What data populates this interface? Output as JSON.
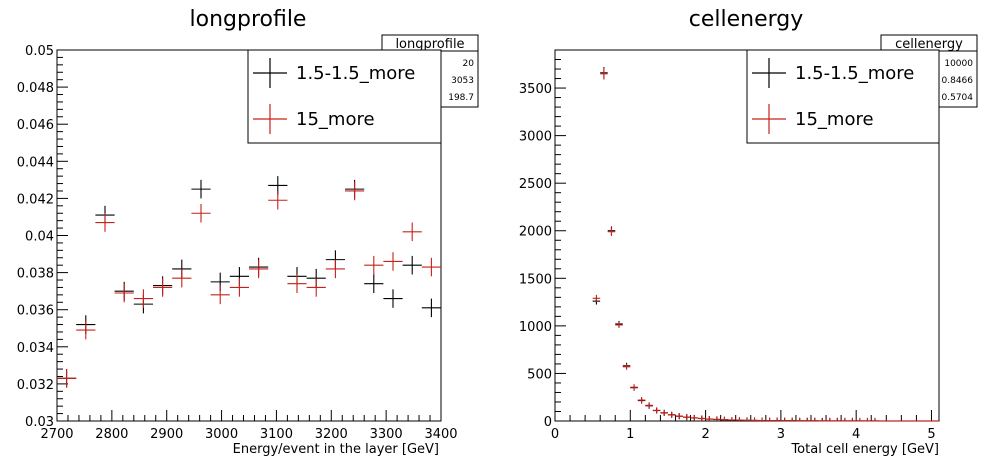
{
  "chart_data": [
    {
      "type": "scatter",
      "title": "longprofile",
      "xlabel": "Energy/event in the layer [GeV]",
      "ylabel": "",
      "xlim": [
        2700,
        3400
      ],
      "ylim": [
        0.03,
        0.05
      ],
      "x_ticks": [
        2700,
        2800,
        2900,
        3000,
        3100,
        3200,
        3300,
        3400
      ],
      "x_tick_labels": [
        "2700",
        "2800",
        "2900",
        "3000",
        "3100",
        "3200",
        "3300",
        "3400"
      ],
      "y_ticks": [
        0.03,
        0.032,
        0.034,
        0.036,
        0.038,
        0.04,
        0.042,
        0.044,
        0.046,
        0.048,
        0.05
      ],
      "y_tick_labels": [
        "0.03",
        "0.032",
        "0.034",
        "0.036",
        "0.038",
        "0.04",
        "0.042",
        "0.044",
        "0.046",
        "0.048",
        "0.05"
      ],
      "grid": false,
      "bin_width": 35,
      "stats_box": {
        "title": "longprofile",
        "values": [
          "20",
          "3053",
          "198.7"
        ]
      },
      "legend": {
        "position": "top-right",
        "entries": [
          "1.5-1.5_more",
          "15_more"
        ]
      },
      "series": [
        {
          "name": "1.5-1.5_more",
          "color": "#000000",
          "x": [
            2717.5,
            2752.5,
            2787.5,
            2822.5,
            2857.5,
            2892.5,
            2927.5,
            2962.5,
            2997.5,
            3032.5,
            3067.5,
            3102.5,
            3137.5,
            3172.5,
            3207.5,
            3242.5,
            3277.5,
            3312.5,
            3347.5,
            3382.5
          ],
          "y": [
            0.0323,
            0.0352,
            0.0411,
            0.037,
            0.0363,
            0.0373,
            0.0382,
            0.0425,
            0.0375,
            0.0378,
            0.0383,
            0.0427,
            0.0378,
            0.0377,
            0.0387,
            0.0425,
            0.0374,
            0.0366,
            0.0384,
            0.0361
          ],
          "yerr": [
            0.0005,
            0.0005,
            0.0005,
            0.0005,
            0.0005,
            0.0005,
            0.0005,
            0.0005,
            0.0005,
            0.0005,
            0.0005,
            0.0005,
            0.0005,
            0.0005,
            0.0005,
            0.0005,
            0.0005,
            0.0005,
            0.0005,
            0.0005
          ]
        },
        {
          "name": "15_more",
          "color": "#c8201a",
          "x": [
            2717.5,
            2752.5,
            2787.5,
            2822.5,
            2857.5,
            2892.5,
            2927.5,
            2962.5,
            2997.5,
            3032.5,
            3067.5,
            3102.5,
            3137.5,
            3172.5,
            3207.5,
            3242.5,
            3277.5,
            3312.5,
            3347.5,
            3382.5
          ],
          "y": [
            0.0323,
            0.0349,
            0.0407,
            0.0369,
            0.0366,
            0.0372,
            0.0377,
            0.0412,
            0.0368,
            0.0372,
            0.0382,
            0.0419,
            0.0374,
            0.0372,
            0.0382,
            0.0424,
            0.0384,
            0.0386,
            0.0402,
            0.0383
          ],
          "yerr": [
            0.0005,
            0.0005,
            0.0005,
            0.0005,
            0.0005,
            0.0005,
            0.0005,
            0.0005,
            0.0005,
            0.0005,
            0.0005,
            0.0005,
            0.0005,
            0.0005,
            0.0005,
            0.0005,
            0.0005,
            0.0005,
            0.0005,
            0.0005
          ]
        }
      ]
    },
    {
      "type": "scatter",
      "title": "cellenergy",
      "xlabel": "Total cell energy [GeV]",
      "ylabel": "",
      "xlim": [
        0,
        5.1
      ],
      "ylim": [
        0,
        3900
      ],
      "x_ticks": [
        0,
        1,
        2,
        3,
        4,
        5
      ],
      "x_tick_labels": [
        "0",
        "1",
        "2",
        "3",
        "4",
        "5"
      ],
      "y_ticks": [
        0,
        500,
        1000,
        1500,
        2000,
        2500,
        3000,
        3500
      ],
      "y_tick_labels": [
        "0",
        "500",
        "1000",
        "1500",
        "2000",
        "2500",
        "3000",
        "3500"
      ],
      "grid": false,
      "bin_width": 0.1,
      "stats_box": {
        "title": "cellenergy",
        "values": [
          "10000",
          "0.8466",
          "0.5704"
        ]
      },
      "legend": {
        "position": "top-right",
        "entries": [
          "1.5-1.5_more",
          "15_more"
        ]
      },
      "series": [
        {
          "name": "1.5-1.5_more",
          "color": "#000000",
          "x": [
            0.55,
            0.65,
            0.75,
            0.85,
            0.95,
            1.05,
            1.15,
            1.25,
            1.35,
            1.45,
            1.55,
            1.65,
            1.75,
            1.85,
            1.95,
            2.05,
            2.15,
            2.25,
            2.35,
            2.45,
            2.55,
            2.65,
            2.75,
            2.85,
            2.95,
            3.05,
            3.15,
            3.25,
            3.35,
            3.45,
            3.55,
            3.65,
            3.75,
            3.85,
            3.95,
            4.05,
            4.15,
            4.25,
            4.35,
            4.45,
            4.55,
            4.65,
            4.75,
            4.85,
            4.95,
            5.05
          ],
          "y": [
            1260,
            3660,
            2000,
            1020,
            580,
            350,
            215,
            160,
            110,
            85,
            65,
            50,
            40,
            32,
            26,
            20,
            16,
            13,
            10,
            8,
            7,
            6,
            5,
            4,
            4,
            3,
            3,
            2,
            2,
            2,
            1,
            1,
            1,
            1,
            1,
            1,
            1,
            1,
            0,
            0,
            0,
            0,
            0,
            0,
            0,
            0
          ],
          "yerr": [
            36,
            60,
            45,
            32,
            24,
            19,
            15,
            13,
            10,
            9,
            8,
            7,
            6,
            6,
            5,
            4,
            4,
            4,
            3,
            3,
            3,
            2,
            2,
            2,
            2,
            2,
            2,
            1,
            1,
            1,
            1,
            1,
            1,
            1,
            1,
            1,
            1,
            1,
            0,
            0,
            0,
            0,
            0,
            0,
            0,
            0
          ]
        },
        {
          "name": "15_more",
          "color": "#c8201a",
          "x": [
            0.55,
            0.65,
            0.75,
            0.85,
            0.95,
            1.05,
            1.15,
            1.25,
            1.35,
            1.45,
            1.55,
            1.65,
            1.75,
            1.85,
            1.95,
            2.05,
            2.15,
            2.25,
            2.35,
            2.45,
            2.55,
            2.65,
            2.75,
            2.85,
            2.95,
            3.05,
            3.15,
            3.25,
            3.35,
            3.45,
            3.55,
            3.65,
            3.75,
            3.85,
            3.95,
            4.05,
            4.15,
            4.25,
            4.35,
            4.45,
            4.55,
            4.65,
            4.75,
            4.85,
            4.95,
            5.05
          ],
          "y": [
            1290,
            3650,
            1990,
            1010,
            570,
            355,
            220,
            165,
            112,
            87,
            66,
            51,
            41,
            33,
            27,
            21,
            17,
            13,
            11,
            9,
            7,
            6,
            5,
            4,
            4,
            3,
            3,
            2,
            2,
            2,
            1,
            1,
            1,
            1,
            1,
            1,
            1,
            1,
            0,
            0,
            0,
            0,
            0,
            0,
            0,
            0
          ],
          "yerr": [
            36,
            60,
            45,
            32,
            24,
            19,
            15,
            13,
            10,
            9,
            8,
            7,
            6,
            6,
            5,
            4,
            4,
            4,
            3,
            3,
            3,
            2,
            2,
            2,
            2,
            2,
            2,
            1,
            1,
            1,
            1,
            1,
            1,
            1,
            1,
            1,
            1,
            1,
            0,
            0,
            0,
            0,
            0,
            0,
            0,
            0
          ]
        }
      ]
    }
  ]
}
